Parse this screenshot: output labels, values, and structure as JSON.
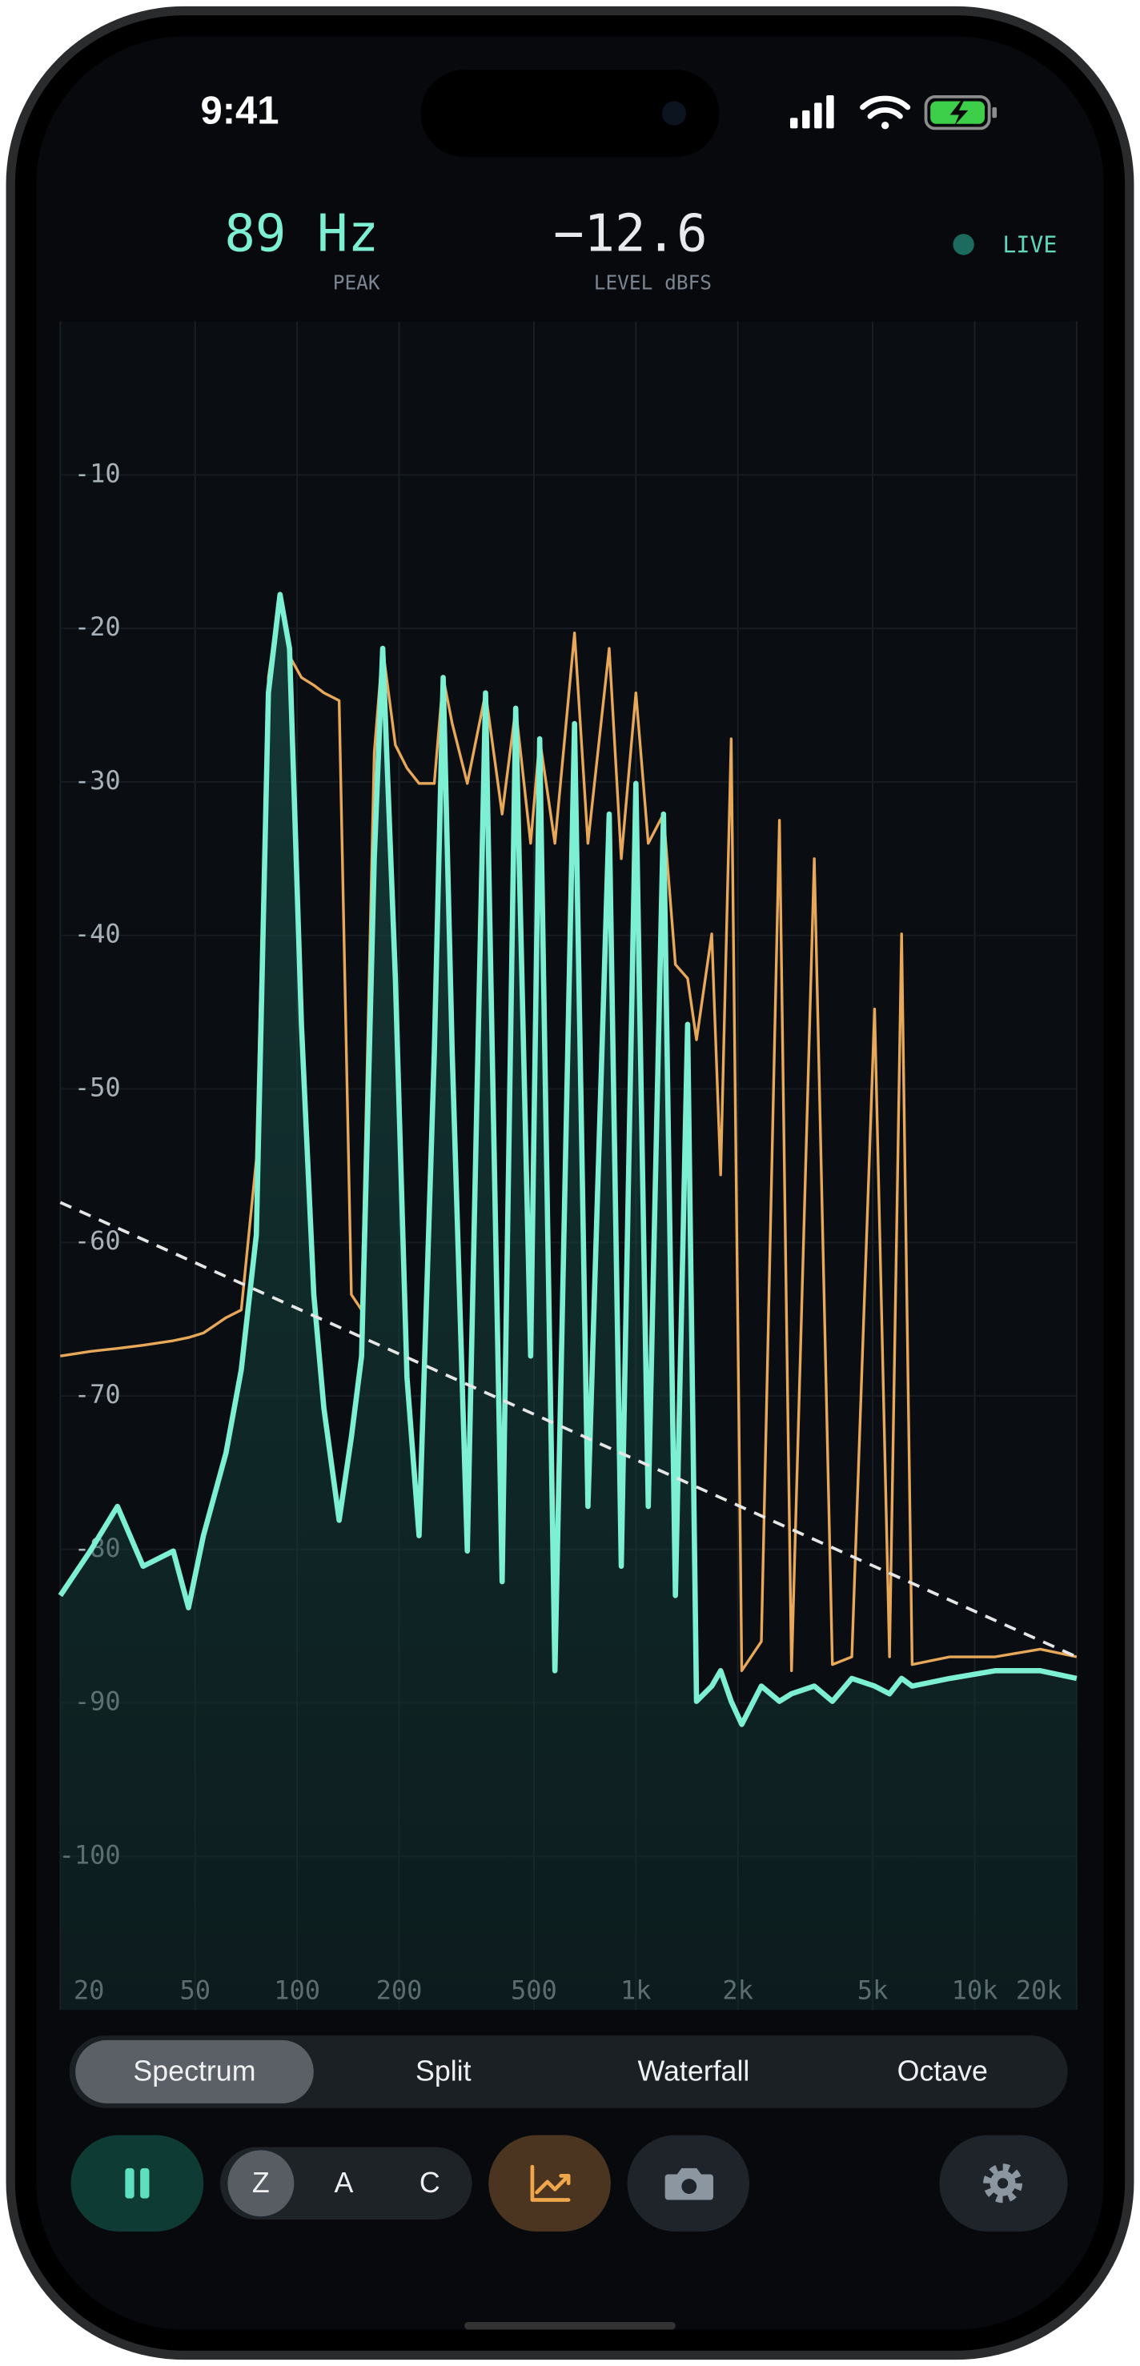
{
  "status_bar": {
    "time": "9:41"
  },
  "readouts": [
    {
      "value": "89 Hz",
      "label": "PEAK"
    },
    {
      "value": "−12.6",
      "label": "LEVEL dBFS"
    }
  ],
  "status": "LIVE",
  "chart_data": {
    "type": "line",
    "log_x": true,
    "grid": true,
    "xlim": [
      20,
      20000
    ],
    "ylim": [
      -110,
      0
    ],
    "xticks": [
      20,
      50,
      100,
      200,
      500,
      {
        "value": 1000,
        "label": "1k"
      },
      {
        "value": 2000,
        "label": "2k"
      },
      {
        "value": 5000,
        "label": "5k"
      },
      {
        "value": 10000,
        "label": "10k"
      },
      {
        "value": 20000,
        "label": "20k"
      }
    ],
    "yticks": [
      -100,
      -90,
      -80,
      -70,
      -60,
      -50,
      -40,
      -30,
      -20,
      -10
    ],
    "x": [
      20,
      24.5,
      29.5,
      35.1,
      43.1,
      47.8,
      52.9,
      61.7,
      68.4,
      75.8,
      82.3,
      89,
      95,
      103,
      112,
      120,
      133,
      144.5,
      155,
      169,
      179,
      195,
      211,
      229,
      254,
      270,
      287,
      318,
      360,
      403,
      442,
      489,
      520,
      577,
      659,
      722,
      834,
      905,
      1000,
      1088,
      1206,
      1308,
      1421,
      1510,
      1674,
      1779,
      1912,
      2054,
      2346,
      2654,
      2880,
      3360,
      3800,
      4340,
      5064,
      5608,
      6088,
      6538,
      8448,
      11486,
      15620,
      20000
    ],
    "series": [
      {
        "color": "#e8a85a",
        "values": [
          -67.4,
          -67.1,
          -66.9,
          -66.7,
          -66.4,
          -66.2,
          -65.9,
          -64.9,
          -64.4,
          -54.6,
          -23.2,
          -17.8,
          -21.8,
          -23.2,
          -23.7,
          -24.2,
          -24.7,
          -63.4,
          -64.4,
          -28.1,
          -21.3,
          -27.6,
          -29.1,
          -30.1,
          -30.1,
          -23.2,
          -26.2,
          -30.1,
          -24.2,
          -32.1,
          -25.2,
          -34.0,
          -27.2,
          -34.0,
          -20.3,
          -34.0,
          -21.3,
          -35.0,
          -24.2,
          -34.0,
          -32.1,
          -41.9,
          -42.8,
          -46.8,
          -39.9,
          -55.6,
          -27.2,
          -87.9,
          -86.0,
          -32.5,
          -87.9,
          -35.0,
          -87.5,
          -87.0,
          -44.8,
          -87.0,
          -39.9,
          -87.5,
          -87.0,
          -87.0,
          -86.5,
          -87.0
        ]
      },
      {
        "color": "#7df0d4",
        "area": true,
        "values": [
          -83.0,
          -80.1,
          -77.2,
          -81.1,
          -80.1,
          -83.8,
          -79.1,
          -73.7,
          -68.3,
          -59.5,
          -24.2,
          -17.8,
          -21.3,
          -45.8,
          -63.4,
          -70.8,
          -78.1,
          -72.7,
          -67.4,
          -35.0,
          -21.3,
          -42.8,
          -68.8,
          -79.1,
          -47.7,
          -23.2,
          -47.7,
          -80.1,
          -24.2,
          -82.1,
          -25.2,
          -67.4,
          -27.2,
          -87.9,
          -26.2,
          -77.2,
          -32.1,
          -81.1,
          -30.1,
          -77.2,
          -32.1,
          -83.0,
          -45.8,
          -89.9,
          -88.9,
          -87.9,
          -89.9,
          -91.4,
          -88.9,
          -89.9,
          -89.4,
          -88.9,
          -89.9,
          -88.4,
          -88.9,
          -89.4,
          -88.4,
          -88.9,
          -88.4,
          -87.9,
          -87.9,
          -88.4
        ]
      },
      {
        "color": "#e6e6e6",
        "dashed": true,
        "x": [
          20,
          20000
        ],
        "values": [
          -57.4,
          -87.0
        ]
      }
    ]
  },
  "tabs": [
    "Spectrum",
    "Split",
    "Waterfall",
    "Octave"
  ],
  "weighting": [
    "Z",
    "A",
    "C"
  ]
}
